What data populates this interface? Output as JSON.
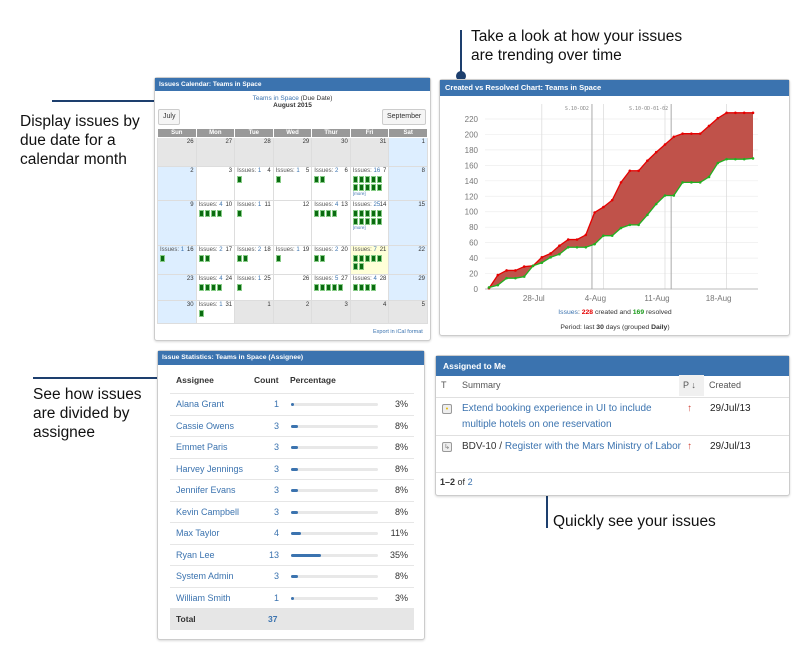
{
  "annotations": {
    "calendar": "Display issues by due date for a calendar month",
    "chart": "Take a look at how your issues are trending over time",
    "stats": "See how issues are divided by assignee",
    "assigned": "Quickly see your issues"
  },
  "calendar": {
    "title": "Issues Calendar: Teams in Space",
    "project": "Teams in Space",
    "date_field": "(Due Date)",
    "month": "August 2015",
    "prev_button": "July",
    "next_button": "September",
    "weekdays": [
      "Sun",
      "Mon",
      "Tue",
      "Wed",
      "Thur",
      "Fri",
      "Sat"
    ],
    "issues_label": "Issues:",
    "more_label": "[more]",
    "export_link": "Export in iCal format",
    "weeks": [
      [
        {
          "day": 26,
          "other": true
        },
        {
          "day": 27,
          "other": true
        },
        {
          "day": 28,
          "other": true
        },
        {
          "day": 29,
          "other": true
        },
        {
          "day": 30,
          "other": true
        },
        {
          "day": 31,
          "other": true
        },
        {
          "day": 1,
          "weekend": true
        }
      ],
      [
        {
          "day": 2,
          "weekend": true
        },
        {
          "day": 3
        },
        {
          "day": 4,
          "issues": 1
        },
        {
          "day": 5,
          "issues": 1
        },
        {
          "day": 6,
          "issues": 2
        },
        {
          "day": 7,
          "issues": 16,
          "more": true
        },
        {
          "day": 8,
          "weekend": true
        }
      ],
      [
        {
          "day": 9,
          "weekend": true
        },
        {
          "day": 10,
          "issues": 4
        },
        {
          "day": 11,
          "issues": 1
        },
        {
          "day": 12
        },
        {
          "day": 13,
          "issues": 4
        },
        {
          "day": 14,
          "issues": 25,
          "more": true
        },
        {
          "day": 15,
          "weekend": true
        }
      ],
      [
        {
          "day": 16,
          "weekend": true,
          "issues": 1
        },
        {
          "day": 17,
          "issues": 2
        },
        {
          "day": 18,
          "issues": 2
        },
        {
          "day": 19,
          "issues": 1
        },
        {
          "day": 20,
          "issues": 2
        },
        {
          "day": 21,
          "issues": 7,
          "today": true
        },
        {
          "day": 22,
          "weekend": true
        }
      ],
      [
        {
          "day": 23,
          "weekend": true
        },
        {
          "day": 24,
          "issues": 4
        },
        {
          "day": 25,
          "issues": 1
        },
        {
          "day": 26
        },
        {
          "day": 27,
          "issues": 5
        },
        {
          "day": 28,
          "issues": 4
        },
        {
          "day": 29,
          "weekend": true
        }
      ],
      [
        {
          "day": 30,
          "weekend": true
        },
        {
          "day": 31,
          "issues": 1
        },
        {
          "day": 1,
          "other": true
        },
        {
          "day": 2,
          "other": true
        },
        {
          "day": 3,
          "other": true
        },
        {
          "day": 4,
          "other": true
        },
        {
          "day": 5,
          "other": true
        }
      ]
    ]
  },
  "chart_data": {
    "type": "area",
    "title": "Created vs Resolved Chart: Teams in Space",
    "x_start": "2015-07-22",
    "x_ticks": [
      "28-Jul",
      "4-Aug",
      "11-Aug",
      "18-Aug"
    ],
    "ylim": [
      0,
      230
    ],
    "y_ticks": [
      0,
      20,
      40,
      60,
      80,
      100,
      120,
      140,
      160,
      180,
      200,
      220
    ],
    "grid": true,
    "versions": [
      {
        "label": "S.10-OD2",
        "date": "2015-08-03"
      },
      {
        "label": "S.10-OD-01-02",
        "date": "2015-08-12"
      }
    ],
    "series": [
      {
        "name": "created",
        "color": "#e60000",
        "values": [
          1,
          18,
          24,
          24,
          29,
          30,
          41,
          46,
          56,
          64,
          64,
          70,
          99,
          106,
          115,
          138,
          153,
          153,
          166,
          177,
          187,
          197,
          201,
          201,
          201,
          211,
          221,
          228,
          228,
          228,
          228
        ]
      },
      {
        "name": "resolved",
        "color": "#22b022",
        "values": [
          2,
          5,
          14,
          14,
          16,
          30,
          34,
          41,
          45,
          54,
          54,
          54,
          58,
          69,
          69,
          79,
          83,
          83,
          96,
          110,
          121,
          121,
          138,
          138,
          138,
          145,
          163,
          168,
          168,
          168,
          169
        ]
      }
    ],
    "fill_color": "#c0524a",
    "summary": {
      "prefix": "Issues",
      "created": "228",
      "created_label": "created and",
      "resolved": "169",
      "resolved_label": "resolved"
    },
    "period": {
      "prefix": "Period: last",
      "days": "30",
      "middle": "days (grouped",
      "group": "Daily",
      "suffix": ")"
    }
  },
  "stats": {
    "title": "Issue Statistics: Teams in Space (Assignee)",
    "headers": {
      "assignee": "Assignee",
      "count": "Count",
      "percentage": "Percentage"
    },
    "rows": [
      {
        "name": "Alana Grant",
        "count": "1",
        "pct": 3
      },
      {
        "name": "Cassie Owens",
        "count": "3",
        "pct": 8
      },
      {
        "name": "Emmet Paris",
        "count": "3",
        "pct": 8
      },
      {
        "name": "Harvey Jennings",
        "count": "3",
        "pct": 8
      },
      {
        "name": "Jennifer Evans",
        "count": "3",
        "pct": 8
      },
      {
        "name": "Kevin Campbell",
        "count": "3",
        "pct": 8
      },
      {
        "name": "Max Taylor",
        "count": "4",
        "pct": 11
      },
      {
        "name": "Ryan Lee",
        "count": "13",
        "pct": 35
      },
      {
        "name": "System Admin",
        "count": "3",
        "pct": 8
      },
      {
        "name": "William Smith",
        "count": "1",
        "pct": 3
      }
    ],
    "total_label": "Total",
    "total": "37"
  },
  "assigned": {
    "title": "Assigned to Me",
    "headers": {
      "type": "T",
      "summary": "Summary",
      "priority": "P",
      "created": "Created"
    },
    "rows": [
      {
        "type_icon": "improvement-icon",
        "key": "",
        "summary": "Extend booking experience in UI to include multiple hotels on one reservation",
        "priority": "high",
        "created": "29/Jul/13"
      },
      {
        "type_icon": "subtask-icon",
        "key": "BDV-10",
        "summary": "Register with the Mars Ministry of Labor",
        "priority": "high",
        "created": "29/Jul/13"
      }
    ],
    "pager": {
      "range": "1–2",
      "of": "of",
      "total": "2"
    }
  }
}
